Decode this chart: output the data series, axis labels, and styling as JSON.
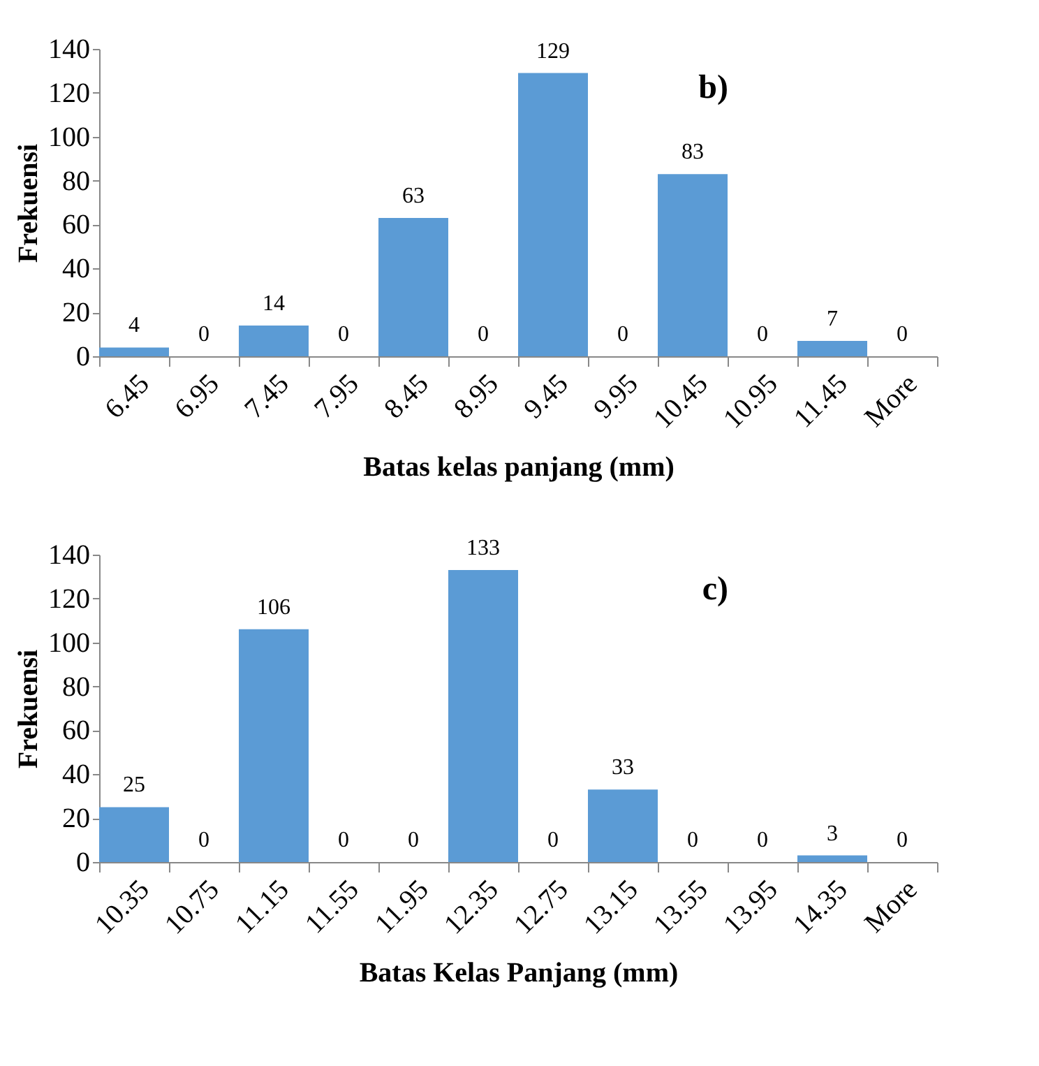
{
  "chart_data": [
    {
      "type": "bar",
      "title": "b)",
      "xlabel": "Batas kelas panjang (mm)",
      "ylabel": "Frekuensi",
      "categories": [
        "6.45",
        "6.95",
        "7.45",
        "7.95",
        "8.45",
        "8.95",
        "9.45",
        "9.95",
        "10.45",
        "10.95",
        "11.45",
        "More"
      ],
      "values": [
        4,
        0,
        14,
        0,
        63,
        0,
        129,
        0,
        83,
        0,
        7,
        0
      ],
      "color": "#5b9bd5",
      "ylim": [
        0,
        140
      ],
      "yticks": [
        0,
        20,
        40,
        60,
        80,
        100,
        120,
        140
      ],
      "grid": false,
      "data_labels": true
    },
    {
      "type": "bar",
      "title": "c)",
      "xlabel": "Batas Kelas Panjang (mm)",
      "ylabel": "Frekuensi",
      "categories": [
        "10.35",
        "10.75",
        "11.15",
        "11.55",
        "11.95",
        "12.35",
        "12.75",
        "13.15",
        "13.55",
        "13.95",
        "14.35",
        "More"
      ],
      "values": [
        25,
        0,
        106,
        0,
        0,
        133,
        0,
        33,
        0,
        0,
        3,
        0
      ],
      "color": "#5b9bd5",
      "ylim": [
        0,
        140
      ],
      "yticks": [
        0,
        20,
        40,
        60,
        80,
        100,
        120,
        140
      ],
      "grid": false,
      "data_labels": true
    }
  ]
}
